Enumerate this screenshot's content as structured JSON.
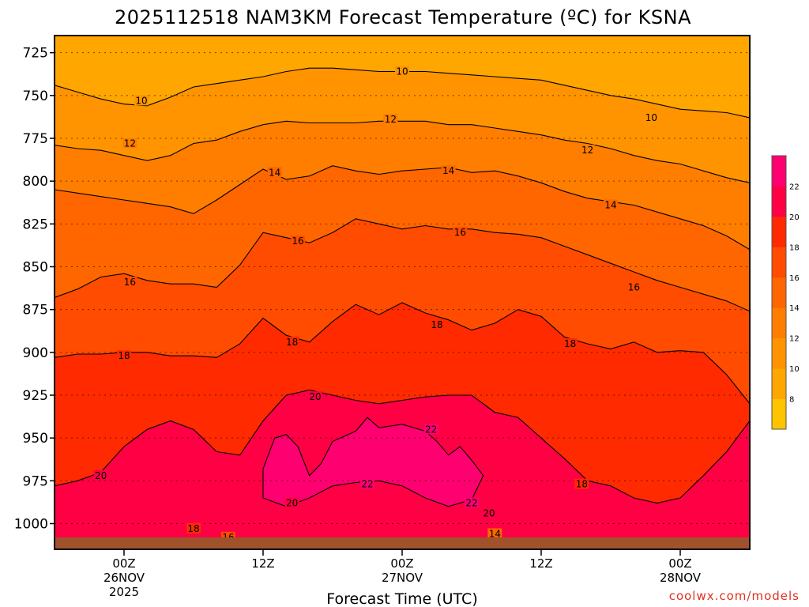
{
  "chart_data": {
    "type": "heatmap",
    "title": "2025112518 NAM3KM Forecast Temperature (ºC) for KSNA",
    "xlabel": "Forecast Time (UTC)",
    "ylabel": "",
    "x_unit": "forecast hour",
    "xlim": [
      -6,
      54
    ],
    "ylim": [
      1015,
      715
    ],
    "x_ticks": [
      {
        "x": 0,
        "lines": [
          "00Z",
          "26NOV",
          "2025"
        ]
      },
      {
        "x": 12,
        "lines": [
          "12Z"
        ]
      },
      {
        "x": 24,
        "lines": [
          "00Z",
          "27NOV"
        ]
      },
      {
        "x": 36,
        "lines": [
          "12Z"
        ]
      },
      {
        "x": 48,
        "lines": [
          "00Z",
          "28NOV"
        ]
      }
    ],
    "y_ticks": [
      725,
      750,
      775,
      800,
      825,
      850,
      875,
      900,
      925,
      950,
      975,
      1000
    ],
    "colorbar": {
      "levels": [
        6,
        8,
        10,
        12,
        14,
        16,
        18,
        20,
        22,
        24
      ],
      "labels": [
        "8",
        "10",
        "12",
        "14",
        "16",
        "18",
        "20",
        "22"
      ],
      "colors": [
        "#ffc400",
        "#ffa600",
        "#ff9400",
        "#ff7e00",
        "#ff6600",
        "#ff4c00",
        "#ff2a00",
        "#ff0044",
        "#ff0070"
      ]
    },
    "surface_color": "#a0522d",
    "surface_pressure": 1008,
    "contours": [
      {
        "value": 10,
        "points": [
          [
            -6,
            744
          ],
          [
            -4,
            748
          ],
          [
            -2,
            752
          ],
          [
            0,
            755
          ],
          [
            2,
            756
          ],
          [
            4,
            751
          ],
          [
            6,
            745
          ],
          [
            8,
            743
          ],
          [
            10,
            741
          ],
          [
            12,
            739
          ],
          [
            14,
            736
          ],
          [
            16,
            734
          ],
          [
            18,
            734
          ],
          [
            20,
            735
          ],
          [
            22,
            736
          ],
          [
            24,
            736
          ],
          [
            26,
            736
          ],
          [
            28,
            737
          ],
          [
            30,
            738
          ],
          [
            32,
            739
          ],
          [
            34,
            740
          ],
          [
            36,
            741
          ],
          [
            38,
            744
          ],
          [
            40,
            747
          ],
          [
            42,
            750
          ],
          [
            44,
            752
          ],
          [
            46,
            755
          ],
          [
            48,
            758
          ],
          [
            50,
            759
          ],
          [
            52,
            760
          ],
          [
            54,
            763
          ]
        ]
      },
      {
        "value": 12,
        "points": [
          [
            -6,
            779
          ],
          [
            -4,
            781
          ],
          [
            -2,
            782
          ],
          [
            0,
            785
          ],
          [
            2,
            788
          ],
          [
            4,
            785
          ],
          [
            6,
            778
          ],
          [
            8,
            776
          ],
          [
            10,
            771
          ],
          [
            12,
            767
          ],
          [
            14,
            765
          ],
          [
            16,
            766
          ],
          [
            18,
            766
          ],
          [
            20,
            766
          ],
          [
            22,
            765
          ],
          [
            24,
            765
          ],
          [
            26,
            765
          ],
          [
            28,
            767
          ],
          [
            30,
            767
          ],
          [
            32,
            769
          ],
          [
            34,
            771
          ],
          [
            36,
            773
          ],
          [
            38,
            776
          ],
          [
            40,
            778
          ],
          [
            42,
            781
          ],
          [
            44,
            785
          ],
          [
            46,
            788
          ],
          [
            48,
            790
          ],
          [
            50,
            794
          ],
          [
            52,
            798
          ],
          [
            54,
            801
          ]
        ]
      },
      {
        "value": 14,
        "points": [
          [
            -6,
            805
          ],
          [
            -4,
            807
          ],
          [
            -2,
            809
          ],
          [
            0,
            811
          ],
          [
            2,
            813
          ],
          [
            4,
            815
          ],
          [
            6,
            819
          ],
          [
            8,
            811
          ],
          [
            10,
            802
          ],
          [
            12,
            793
          ],
          [
            14,
            799
          ],
          [
            16,
            797
          ],
          [
            18,
            791
          ],
          [
            20,
            794
          ],
          [
            22,
            796
          ],
          [
            24,
            794
          ],
          [
            26,
            793
          ],
          [
            28,
            792
          ],
          [
            30,
            795
          ],
          [
            32,
            794
          ],
          [
            34,
            797
          ],
          [
            36,
            801
          ],
          [
            38,
            806
          ],
          [
            40,
            810
          ],
          [
            42,
            812
          ],
          [
            44,
            814
          ],
          [
            46,
            818
          ],
          [
            48,
            822
          ],
          [
            50,
            826
          ],
          [
            52,
            832
          ],
          [
            54,
            840
          ]
        ]
      },
      {
        "value": 16,
        "points": [
          [
            -6,
            868
          ],
          [
            -4,
            863
          ],
          [
            -2,
            856
          ],
          [
            0,
            854
          ],
          [
            2,
            858
          ],
          [
            4,
            860
          ],
          [
            6,
            860
          ],
          [
            8,
            862
          ],
          [
            10,
            849
          ],
          [
            12,
            830
          ],
          [
            14,
            833
          ],
          [
            16,
            836
          ],
          [
            18,
            830
          ],
          [
            20,
            822
          ],
          [
            22,
            825
          ],
          [
            24,
            828
          ],
          [
            26,
            826
          ],
          [
            28,
            828
          ],
          [
            30,
            828
          ],
          [
            32,
            830
          ],
          [
            34,
            831
          ],
          [
            36,
            833
          ],
          [
            38,
            838
          ],
          [
            40,
            843
          ],
          [
            42,
            848
          ],
          [
            44,
            853
          ],
          [
            46,
            858
          ],
          [
            48,
            862
          ],
          [
            50,
            866
          ],
          [
            52,
            870
          ],
          [
            54,
            876
          ]
        ]
      },
      {
        "value": 18,
        "points": [
          [
            -6,
            903
          ],
          [
            -4,
            901
          ],
          [
            -2,
            901
          ],
          [
            0,
            900
          ],
          [
            2,
            900
          ],
          [
            4,
            902
          ],
          [
            6,
            902
          ],
          [
            8,
            903
          ],
          [
            10,
            895
          ],
          [
            12,
            880
          ],
          [
            14,
            890
          ],
          [
            16,
            894
          ],
          [
            18,
            882
          ],
          [
            20,
            872
          ],
          [
            22,
            878
          ],
          [
            24,
            871
          ],
          [
            26,
            877
          ],
          [
            28,
            881
          ],
          [
            30,
            887
          ],
          [
            32,
            883
          ],
          [
            34,
            875
          ],
          [
            36,
            879
          ],
          [
            38,
            891
          ],
          [
            40,
            895
          ],
          [
            42,
            898
          ],
          [
            44,
            894
          ],
          [
            46,
            900
          ],
          [
            48,
            899
          ],
          [
            50,
            900
          ],
          [
            52,
            913
          ],
          [
            54,
            930
          ]
        ]
      },
      {
        "value": 20,
        "points": [
          [
            -6,
            978
          ],
          [
            -4,
            975
          ],
          [
            -2,
            970
          ],
          [
            0,
            955
          ],
          [
            2,
            945
          ],
          [
            4,
            940
          ],
          [
            6,
            945
          ],
          [
            8,
            958
          ],
          [
            10,
            960
          ],
          [
            12,
            940
          ],
          [
            14,
            925
          ],
          [
            16,
            922
          ],
          [
            18,
            925
          ],
          [
            20,
            928
          ],
          [
            22,
            930
          ],
          [
            24,
            928
          ],
          [
            26,
            926
          ],
          [
            28,
            925
          ],
          [
            30,
            925
          ],
          [
            32,
            935
          ],
          [
            34,
            938
          ],
          [
            36,
            950
          ],
          [
            38,
            962
          ],
          [
            40,
            975
          ],
          [
            42,
            978
          ],
          [
            44,
            985
          ],
          [
            46,
            988
          ],
          [
            48,
            985
          ],
          [
            50,
            972
          ],
          [
            52,
            958
          ],
          [
            54,
            940
          ]
        ]
      },
      {
        "value": 22,
        "points": [
          [
            12,
            968
          ],
          [
            13,
            950
          ],
          [
            14,
            948
          ],
          [
            15,
            955
          ],
          [
            16,
            972
          ],
          [
            17,
            965
          ],
          [
            18,
            952
          ],
          [
            20,
            946
          ],
          [
            21,
            938
          ],
          [
            22,
            944
          ],
          [
            24,
            942
          ],
          [
            26,
            946
          ],
          [
            27,
            952
          ],
          [
            28,
            960
          ],
          [
            29,
            955
          ],
          [
            30,
            963
          ],
          [
            31,
            972
          ],
          [
            30,
            986
          ],
          [
            28,
            990
          ],
          [
            26,
            985
          ],
          [
            24,
            978
          ],
          [
            22,
            975
          ],
          [
            20,
            976
          ],
          [
            18,
            978
          ],
          [
            16,
            985
          ],
          [
            14,
            990
          ],
          [
            12,
            985
          ]
        ]
      }
    ],
    "contour_labels": [
      {
        "text": "10",
        "x": 1.5,
        "pressure": 753
      },
      {
        "text": "10",
        "x": 24,
        "pressure": 736
      },
      {
        "text": "10",
        "x": 45.5,
        "pressure": 763
      },
      {
        "text": "12",
        "x": 0.5,
        "pressure": 778
      },
      {
        "text": "12",
        "x": 23,
        "pressure": 764
      },
      {
        "text": "12",
        "x": 40,
        "pressure": 782
      },
      {
        "text": "14",
        "x": 13,
        "pressure": 795
      },
      {
        "text": "14",
        "x": 28,
        "pressure": 794
      },
      {
        "text": "14",
        "x": 42,
        "pressure": 814
      },
      {
        "text": "16",
        "x": 0.5,
        "pressure": 859
      },
      {
        "text": "16",
        "x": 15,
        "pressure": 835
      },
      {
        "text": "16",
        "x": 29,
        "pressure": 830
      },
      {
        "text": "16",
        "x": 44,
        "pressure": 862
      },
      {
        "text": "18",
        "x": 0,
        "pressure": 902
      },
      {
        "text": "18",
        "x": 14.5,
        "pressure": 894
      },
      {
        "text": "18",
        "x": 27,
        "pressure": 884
      },
      {
        "text": "18",
        "x": 38.5,
        "pressure": 895
      },
      {
        "text": "18",
        "x": 39.5,
        "pressure": 977
      },
      {
        "text": "18",
        "x": 6,
        "pressure": 1003
      },
      {
        "text": "16",
        "x": 9,
        "pressure": 1008
      },
      {
        "text": "20",
        "x": -2,
        "pressure": 972
      },
      {
        "text": "20",
        "x": 16.5,
        "pressure": 926
      },
      {
        "text": "20",
        "x": 14.5,
        "pressure": 988
      },
      {
        "text": "20",
        "x": 31.5,
        "pressure": 994
      },
      {
        "text": "14",
        "x": 32,
        "pressure": 1006
      },
      {
        "text": "22",
        "x": 26.5,
        "pressure": 945
      },
      {
        "text": "22",
        "x": 21,
        "pressure": 977
      },
      {
        "text": "22",
        "x": 30,
        "pressure": 988
      }
    ]
  },
  "credit": "coolwx.com/models",
  "colors": {
    "credit": "#e03020",
    "contour": "#000000",
    "grid": "#000000"
  }
}
